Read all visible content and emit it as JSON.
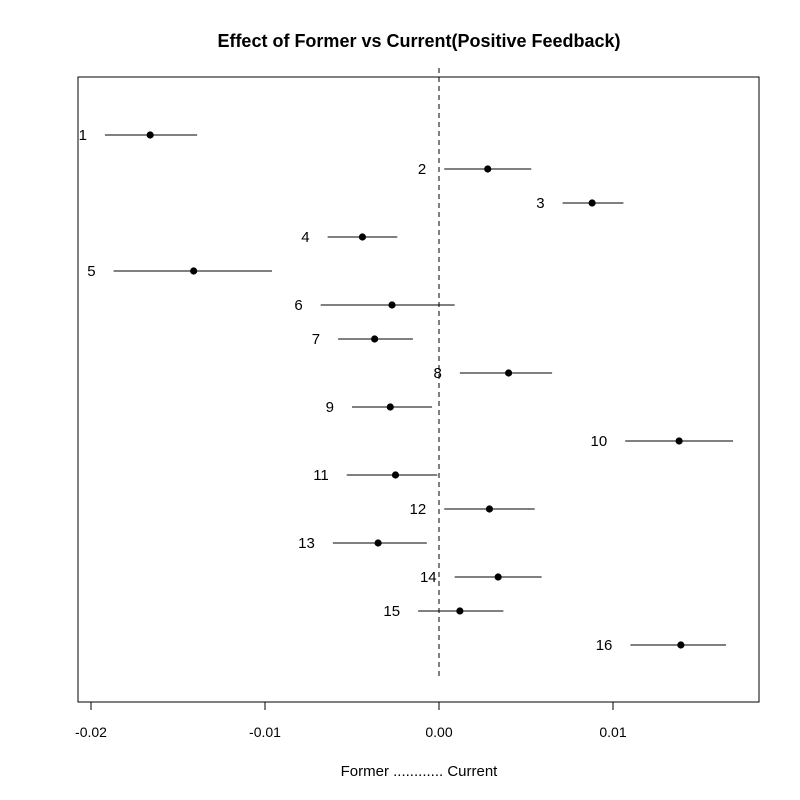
{
  "chart_data": {
    "type": "scatter",
    "title": "Effect of Former vs Current(Positive Feedback)",
    "xlabel": "Former ............ Current",
    "ylabel": "",
    "xlim": [
      -0.0205,
      0.0183
    ],
    "x_ticks": [
      -0.02,
      -0.01,
      0.0,
      0.01
    ],
    "x_tick_labels": [
      "-0.02",
      "-0.01",
      "0.00",
      "0.01"
    ],
    "reference_line": {
      "x": 0,
      "style": "dashed"
    },
    "grid": false,
    "points": [
      {
        "label": "1",
        "estimate": -0.0166,
        "lower": -0.0192,
        "upper": -0.0139
      },
      {
        "label": "2",
        "estimate": 0.0028,
        "lower": 0.0003,
        "upper": 0.0053
      },
      {
        "label": "3",
        "estimate": 0.0088,
        "lower": 0.0071,
        "upper": 0.0106
      },
      {
        "label": "4",
        "estimate": -0.0044,
        "lower": -0.0064,
        "upper": -0.0024
      },
      {
        "label": "5",
        "estimate": -0.0141,
        "lower": -0.0187,
        "upper": -0.0096
      },
      {
        "label": "6",
        "estimate": -0.0027,
        "lower": -0.0068,
        "upper": 0.0009
      },
      {
        "label": "7",
        "estimate": -0.0037,
        "lower": -0.0058,
        "upper": -0.0015
      },
      {
        "label": "8",
        "estimate": 0.004,
        "lower": 0.0012,
        "upper": 0.0065
      },
      {
        "label": "9",
        "estimate": -0.0028,
        "lower": -0.005,
        "upper": -0.0004
      },
      {
        "label": "10",
        "estimate": 0.0138,
        "lower": 0.0107,
        "upper": 0.0169
      },
      {
        "label": "11",
        "estimate": -0.0025,
        "lower": -0.0053,
        "upper": -0.0001
      },
      {
        "label": "12",
        "estimate": 0.0029,
        "lower": 0.0003,
        "upper": 0.0055
      },
      {
        "label": "13",
        "estimate": -0.0035,
        "lower": -0.0061,
        "upper": -0.0007
      },
      {
        "label": "14",
        "estimate": 0.0034,
        "lower": 0.0009,
        "upper": 0.0059
      },
      {
        "label": "15",
        "estimate": 0.0012,
        "lower": -0.0012,
        "upper": 0.0037
      },
      {
        "label": "16",
        "estimate": 0.0139,
        "lower": 0.011,
        "upper": 0.0165
      }
    ]
  }
}
